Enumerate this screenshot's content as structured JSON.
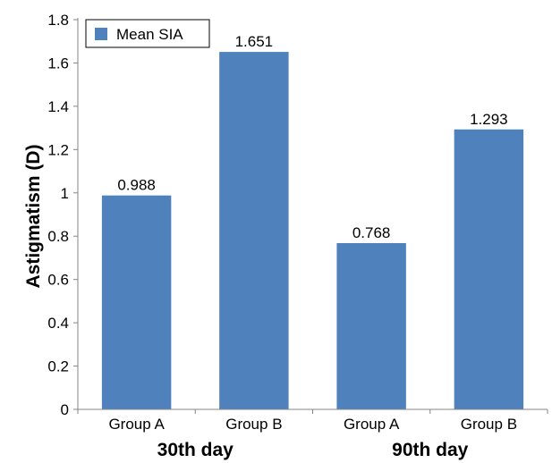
{
  "chart_data": {
    "type": "bar",
    "categories": [
      "Group A",
      "Group B",
      "Group A",
      "Group B"
    ],
    "groups": [
      {
        "label": "30th day",
        "categories": [
          "Group A",
          "Group B"
        ]
      },
      {
        "label": "90th day",
        "categories": [
          "Group A",
          "Group B"
        ]
      }
    ],
    "series": [
      {
        "name": "Mean SIA",
        "values": [
          0.988,
          1.651,
          0.768,
          1.293
        ],
        "color": "#4f81bd"
      }
    ],
    "data_labels": [
      "0.988",
      "1.651",
      "0.768",
      "1.293"
    ],
    "xlabel": "",
    "ylabel": "Astigmatism (D)",
    "ylim": [
      0,
      1.8
    ],
    "yticks": [
      "0",
      "0.2",
      "0.4",
      "0.6",
      "0.8",
      "1",
      "1.2",
      "1.4",
      "1.6",
      "1.8"
    ],
    "grid": false,
    "legend": {
      "position": "top-left",
      "label": "Mean SIA"
    }
  }
}
